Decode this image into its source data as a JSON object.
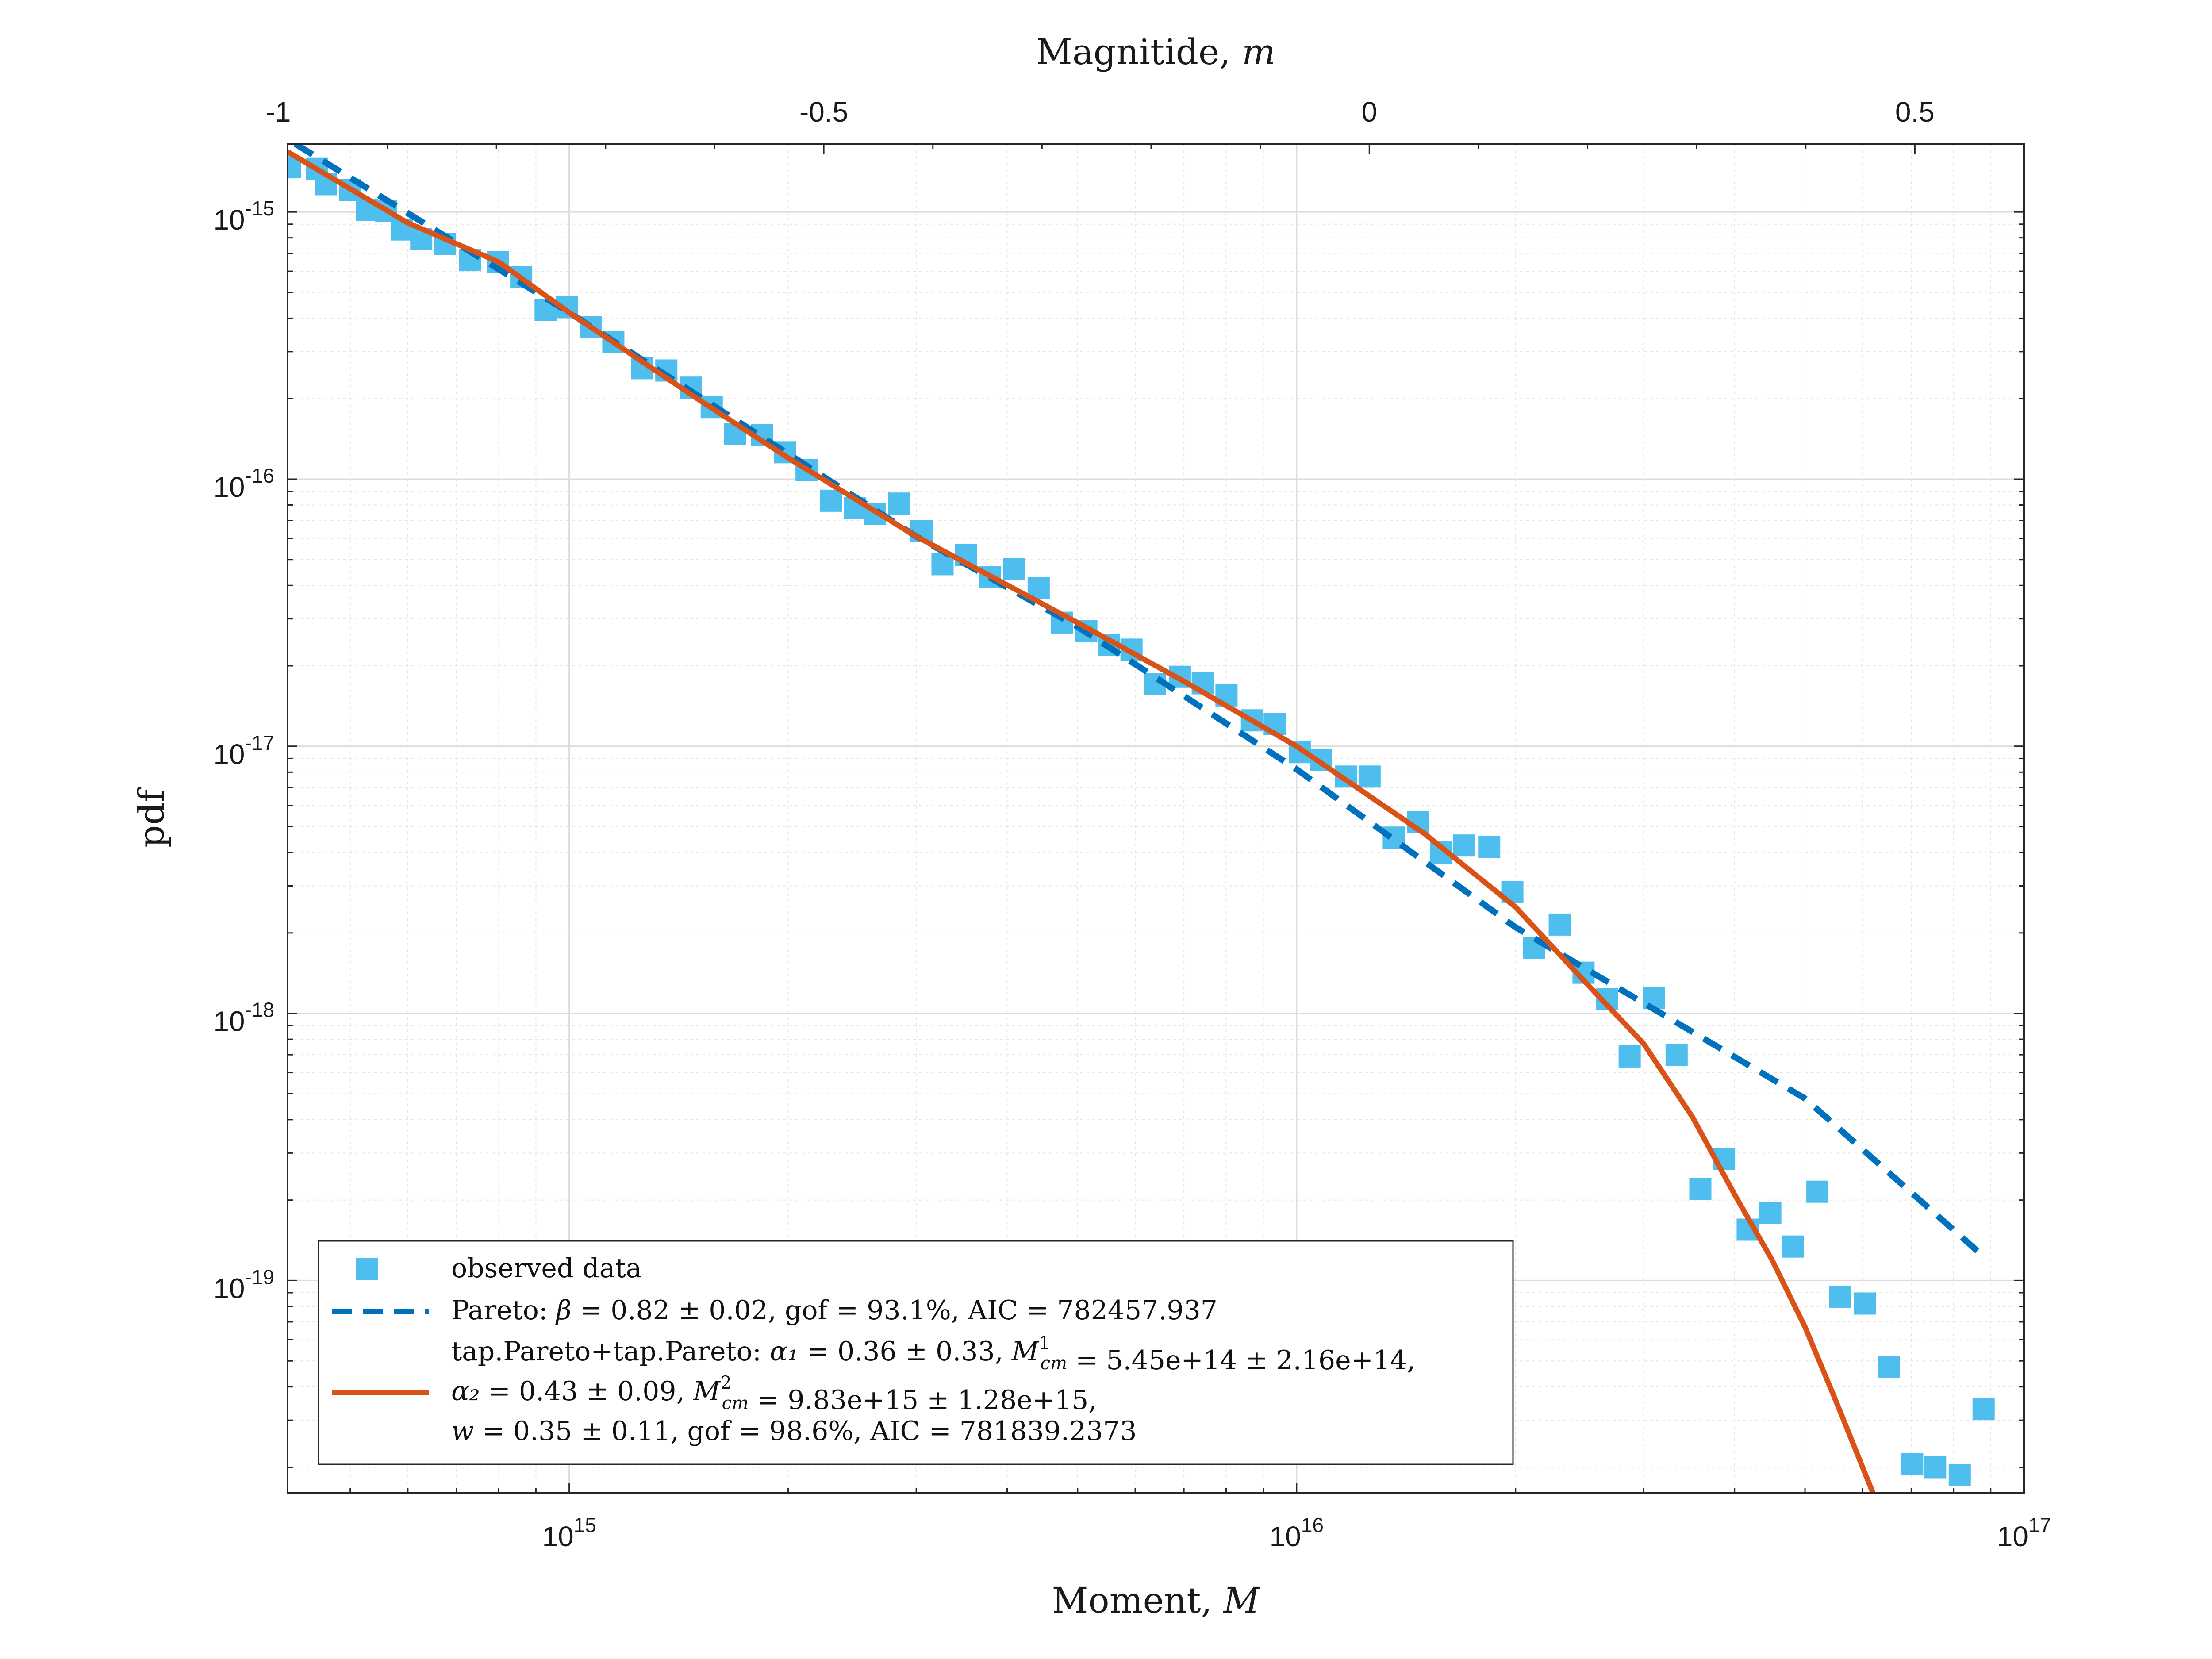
{
  "chart_data": {
    "type": "scatter",
    "xlabel": "Moment, M",
    "ylabel": "pdf",
    "x2label": "Magnitide, m",
    "xscale": "log",
    "yscale": "log",
    "xlim": [
      410000000000000.0,
      1e+17
    ],
    "ylim": [
      1.6e-20,
      1.8e-15
    ],
    "grid": true,
    "legend_position": "bottom-left",
    "x_ticks": [
      {
        "value": 1000000000000000.0,
        "base": "10",
        "exp": "15"
      },
      {
        "value": 1e+16,
        "base": "10",
        "exp": "16"
      },
      {
        "value": 1e+17,
        "base": "10",
        "exp": "17"
      }
    ],
    "y_ticks": [
      {
        "value": 1e-15,
        "base": "10",
        "exp": "-15"
      },
      {
        "value": 1e-16,
        "base": "10",
        "exp": "-16"
      },
      {
        "value": 1e-17,
        "base": "10",
        "exp": "-17"
      },
      {
        "value": 1e-18,
        "base": "10",
        "exp": "-18"
      },
      {
        "value": 1e-19,
        "base": "10",
        "exp": "-19"
      }
    ],
    "top_ticks": [
      {
        "value": -1.0,
        "label": "-1"
      },
      {
        "value": -0.5,
        "label": "-0.5"
      },
      {
        "value": 0.0,
        "label": "0"
      },
      {
        "value": 0.5,
        "label": "0.5"
      }
    ],
    "colors": {
      "observed": "#4dbeee",
      "pareto": "#0072bd",
      "tapered": "#d95319"
    },
    "legend": [
      {
        "key": "observed",
        "lines": [
          "observed data"
        ]
      },
      {
        "key": "pareto",
        "lines": [
          "Pareto: β = 0.82 ± 0.02, gof = 93.1%, AIC = 782457.937"
        ]
      },
      {
        "key": "tapered",
        "lines": [
          "tap.Pareto+tap.Pareto: α₁ = 0.36 ± 0.33, M¹cm = 5.45e+14 ± 2.16e+14,",
          "α₂ = 0.43 ± 0.09, M²cm = 9.83e+15 ± 1.28e+15,",
          "w = 0.35 ± 0.11, gof = 98.6%, AIC = 781839.2373"
        ]
      }
    ],
    "series": [
      {
        "name": "observed data",
        "points": [
          [
            413000000000000.0,
            1.47e-15
          ],
          [
            450000000000000.0,
            1.45e-15
          ],
          [
            463000000000000.0,
            1.27e-15
          ],
          [
            500000000000000.0,
            1.21e-15
          ],
          [
            527000000000000.0,
            1.02e-15
          ],
          [
            560000000000000.0,
            1.01e-15
          ],
          [
            589000000000000.0,
            8.6e-16
          ],
          [
            626000000000000.0,
            7.9e-16
          ],
          [
            675000000000000.0,
            7.6e-16
          ],
          [
            731000000000000.0,
            6.6e-16
          ],
          [
            798000000000000.0,
            6.5e-16
          ],
          [
            859000000000000.0,
            5.7e-16
          ],
          [
            928000000000000.0,
            4.3e-16
          ],
          [
            993000000000000.0,
            4.4e-16
          ],
          [
            1070000000000000.0,
            3.7e-16
          ],
          [
            1150000000000000.0,
            3.25e-16
          ],
          [
            1260000000000000.0,
            2.6e-16
          ],
          [
            1360000000000000.0,
            2.55e-16
          ],
          [
            1470000000000000.0,
            2.2e-16
          ],
          [
            1570000000000000.0,
            1.86e-16
          ],
          [
            1690000000000000.0,
            1.47e-16
          ],
          [
            1840000000000000.0,
            1.46e-16
          ],
          [
            1980000000000000.0,
            1.26e-16
          ],
          [
            2120000000000000.0,
            1.08e-16
          ],
          [
            2290000000000000.0,
            8.3e-17
          ],
          [
            2470000000000000.0,
            7.8e-17
          ],
          [
            2630000000000000.0,
            7.4e-17
          ],
          [
            2840000000000000.0,
            8.1e-17
          ],
          [
            3050000000000000.0,
            6.4e-17
          ],
          [
            3260000000000000.0,
            4.8e-17
          ],
          [
            3510000000000000.0,
            5.2e-17
          ],
          [
            3790000000000000.0,
            4.3e-17
          ],
          [
            4090000000000000.0,
            4.6e-17
          ],
          [
            4420000000000000.0,
            3.9e-17
          ],
          [
            4760000000000000.0,
            2.9e-17
          ],
          [
            5140000000000000.0,
            2.7e-17
          ],
          [
            5520000000000000.0,
            2.4e-17
          ],
          [
            5930000000000000.0,
            2.3e-17
          ],
          [
            6390000000000000.0,
            1.71e-17
          ],
          [
            6910000000000000.0,
            1.82e-17
          ],
          [
            7430000000000000.0,
            1.72e-17
          ],
          [
            8010000000000000.0,
            1.55e-17
          ],
          [
            8680000000000000.0,
            1.25e-17
          ],
          [
            9330000000000000.0,
            1.21e-17
          ],
          [
            1.01e+16,
            9.5e-18
          ],
          [
            1.08e+16,
            8.9e-18
          ],
          [
            1.17e+16,
            7.7e-18
          ],
          [
            1.26e+16,
            7.7e-18
          ],
          [
            1.36e+16,
            4.55e-18
          ],
          [
            1.47e+16,
            5.2e-18
          ],
          [
            1.58e+16,
            4e-18
          ],
          [
            1.7e+16,
            4.25e-18
          ],
          [
            1.84e+16,
            4.2e-18
          ],
          [
            1.98e+16,
            2.85e-18
          ],
          [
            2.12e+16,
            1.76e-18
          ],
          [
            2.3e+16,
            2.15e-18
          ],
          [
            2.48e+16,
            1.42e-18
          ],
          [
            2.67e+16,
            1.13e-18
          ],
          [
            2.87e+16,
            6.9e-19
          ],
          [
            3.1e+16,
            1.14e-18
          ],
          [
            3.33e+16,
            7e-19
          ],
          [
            3.59e+16,
            2.2e-19
          ],
          [
            3.87e+16,
            2.85e-19
          ],
          [
            4.17e+16,
            1.55e-19
          ],
          [
            4.48e+16,
            1.79e-19
          ],
          [
            4.81e+16,
            1.34e-19
          ],
          [
            5.2e+16,
            2.15e-19
          ],
          [
            5.59e+16,
            8.7e-20
          ],
          [
            6.04e+16,
            8.2e-20
          ],
          [
            6.52e+16,
            4.75e-20
          ],
          [
            7.02e+16,
            2.05e-20
          ],
          [
            7.55e+16,
            2e-20
          ],
          [
            8.16e+16,
            1.87e-20
          ],
          [
            8.8e+16,
            3.3e-20
          ]
        ]
      },
      {
        "name": "Pareto",
        "points": [
          [
            420000000000000.0,
            1.8e-15
          ],
          [
            1000000000000000.0,
            4.2e-16
          ],
          [
            3000000000000000.0,
            6.1e-17
          ],
          [
            5000000000000000.0,
            2.8e-17
          ],
          [
            1e+16,
            8.2e-18
          ],
          [
            2e+16,
            2.1e-18
          ],
          [
            5e+16,
            4.8e-19
          ],
          [
            8.8e+16,
            1.23e-19
          ]
        ]
      },
      {
        "name": "tap.Pareto+tap.Pareto",
        "points": [
          [
            410000000000000.0,
            1.68e-15
          ],
          [
            600000000000000.0,
            9.1e-16
          ],
          [
            800000000000000.0,
            6.5e-16
          ],
          [
            1000000000000000.0,
            4.2e-16
          ],
          [
            1500000000000000.0,
            2e-16
          ],
          [
            2000000000000000.0,
            1.2e-16
          ],
          [
            3000000000000000.0,
            6.1e-17
          ],
          [
            5000000000000000.0,
            2.9e-17
          ],
          [
            7000000000000000.0,
            1.75e-17
          ],
          [
            1e+16,
            1e-17
          ],
          [
            1.5e+16,
            4.7e-18
          ],
          [
            2e+16,
            2.5e-18
          ],
          [
            2.5e+16,
            1.3e-18
          ],
          [
            3e+16,
            7.7e-19
          ],
          [
            3.5e+16,
            4.1e-19
          ],
          [
            4e+16,
            2.1e-19
          ],
          [
            4.5e+16,
            1.2e-19
          ],
          [
            5e+16,
            6.7e-20
          ],
          [
            5.5e+16,
            3.6e-20
          ],
          [
            6e+16,
            2e-20
          ],
          [
            6.2e+16,
            1.6e-20
          ]
        ]
      }
    ]
  }
}
